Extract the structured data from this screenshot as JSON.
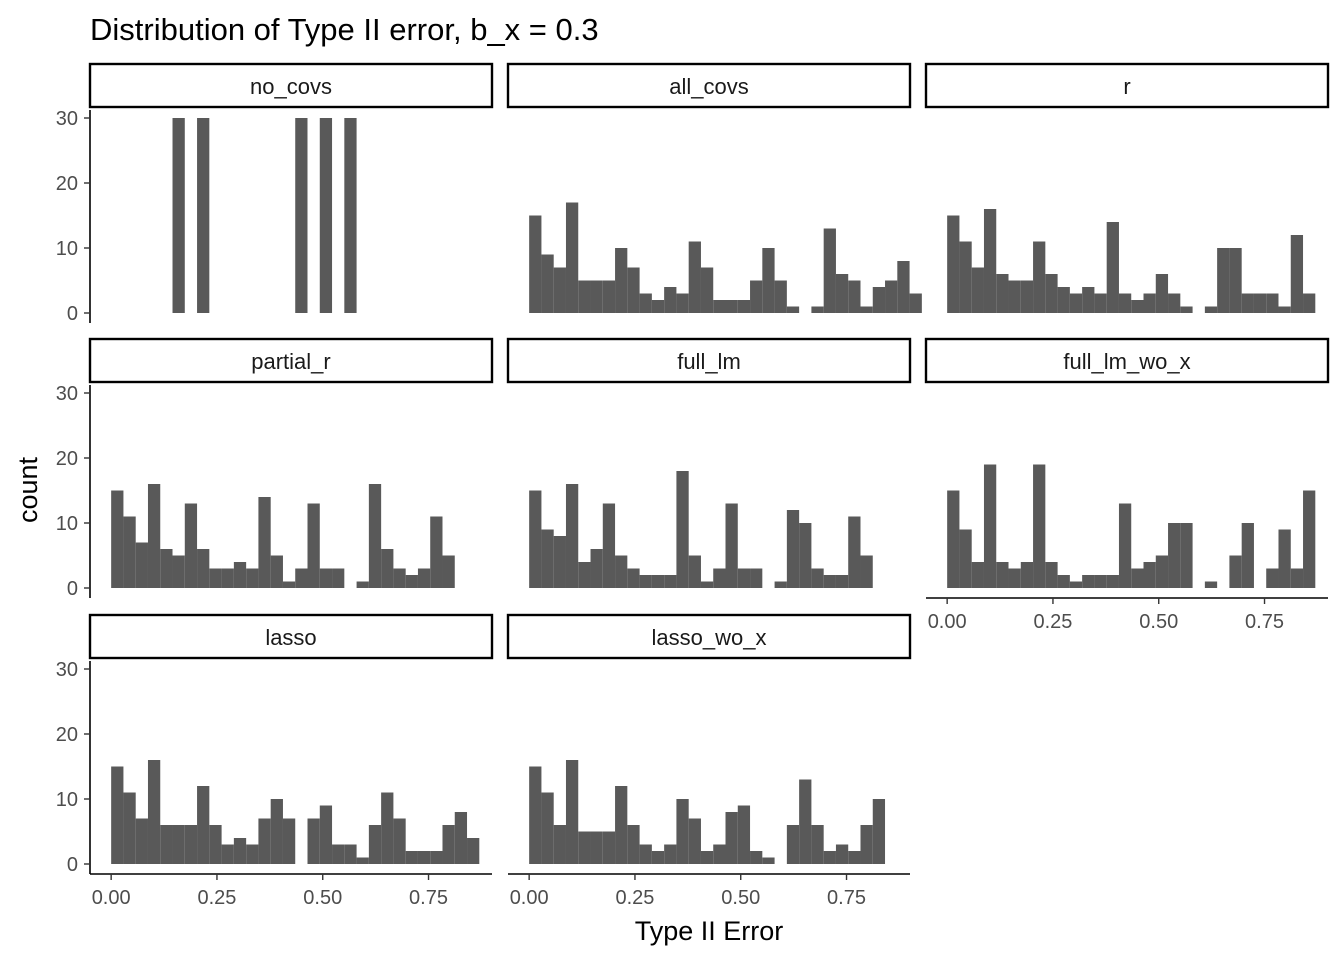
{
  "chart_data": {
    "type": "bar",
    "title": "Distribution of Type II error, b_x = 0.3",
    "xlabel": "Type II Error",
    "ylabel": "count",
    "xlim": [
      -0.05,
      0.9
    ],
    "ylim": [
      0,
      30
    ],
    "y_ticks": [
      "0",
      "10",
      "20",
      "30"
    ],
    "x_ticks": [
      "0.00",
      "0.25",
      "0.50",
      "0.75"
    ],
    "x_tick_values": [
      0,
      0.25,
      0.5,
      0.75
    ],
    "bin_width": 0.029,
    "bin_start": 0,
    "grid": false,
    "bar_color": "#595959",
    "facets": [
      {
        "label": "no_covs",
        "counts": [
          0,
          0,
          0,
          0,
          0,
          30,
          0,
          30,
          0,
          0,
          0,
          0,
          0,
          0,
          0,
          30,
          0,
          30,
          0,
          30,
          0,
          0,
          0,
          0,
          0,
          0,
          0,
          0,
          0,
          0,
          0
        ]
      },
      {
        "label": "all_covs",
        "counts": [
          15,
          9,
          7,
          17,
          5,
          5,
          5,
          10,
          7,
          3,
          2,
          4,
          3,
          11,
          7,
          2,
          2,
          2,
          5,
          10,
          5,
          1,
          0,
          1,
          13,
          6,
          5,
          1,
          4,
          5,
          8,
          3
        ]
      },
      {
        "label": "r",
        "counts": [
          15,
          11,
          7,
          16,
          6,
          5,
          5,
          11,
          6,
          4,
          3,
          4,
          3,
          14,
          3,
          2,
          3,
          6,
          3,
          1,
          0,
          1,
          10,
          10,
          3,
          3,
          3,
          1,
          12,
          3
        ]
      },
      {
        "label": "partial_r",
        "counts": [
          15,
          11,
          7,
          16,
          6,
          5,
          13,
          6,
          3,
          3,
          4,
          3,
          14,
          5,
          1,
          3,
          13,
          3,
          3,
          0,
          1,
          16,
          6,
          3,
          2,
          3,
          11,
          5
        ]
      },
      {
        "label": "full_lm",
        "counts": [
          15,
          9,
          8,
          16,
          4,
          6,
          13,
          5,
          3,
          2,
          2,
          2,
          18,
          5,
          1,
          3,
          13,
          3,
          3,
          0,
          1,
          12,
          10,
          3,
          2,
          2,
          11,
          5
        ]
      },
      {
        "label": "full_lm_wo_x",
        "counts": [
          15,
          9,
          4,
          19,
          4,
          3,
          4,
          19,
          4,
          2,
          1,
          2,
          2,
          2,
          13,
          3,
          4,
          5,
          10,
          10,
          0,
          1,
          0,
          5,
          10,
          0,
          3,
          9,
          3,
          15
        ]
      },
      {
        "label": "lasso",
        "counts": [
          15,
          11,
          7,
          16,
          6,
          6,
          6,
          12,
          6,
          3,
          4,
          3,
          7,
          10,
          7,
          0,
          7,
          9,
          3,
          3,
          1,
          6,
          11,
          7,
          2,
          2,
          2,
          6,
          8,
          4
        ]
      },
      {
        "label": "lasso_wo_x",
        "counts": [
          15,
          11,
          6,
          16,
          5,
          5,
          5,
          12,
          6,
          3,
          2,
          3,
          10,
          7,
          2,
          3,
          8,
          9,
          2,
          1,
          0,
          6,
          13,
          6,
          2,
          3,
          2,
          6,
          10
        ]
      }
    ],
    "x_axis_facets": [
      "full_lm_wo_x",
      "lasso",
      "lasso_wo_x"
    ]
  }
}
